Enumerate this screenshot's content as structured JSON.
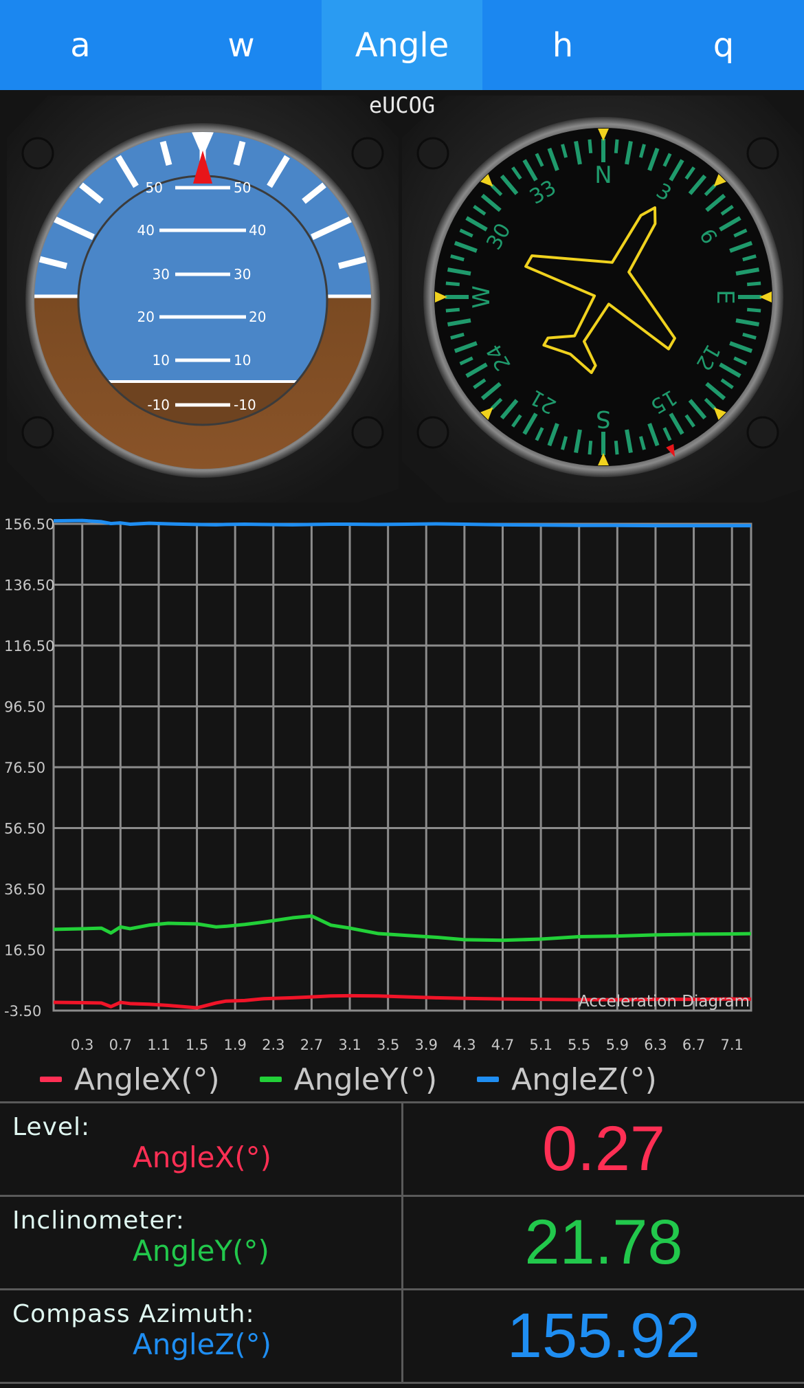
{
  "tabs": [
    {
      "label": "a",
      "active": false
    },
    {
      "label": "w",
      "active": false
    },
    {
      "label": "Angle",
      "active": true
    },
    {
      "label": "h",
      "active": false
    },
    {
      "label": "q",
      "active": false
    }
  ],
  "device_name": "eUCOG",
  "attitude": {
    "pitch_labels": [
      "50",
      "40",
      "30",
      "20",
      "10",
      "-10"
    ]
  },
  "compass": {
    "cardinals": [
      "N",
      "E",
      "S",
      "W"
    ],
    "numbers": [
      "3",
      "6",
      "12",
      "15",
      "21",
      "24",
      "30",
      "33"
    ],
    "heading": 155.92
  },
  "chart_data": {
    "type": "line",
    "title": "Acceleration Diagram",
    "ylim": [
      -3.5,
      156.5
    ],
    "yticks": [
      "156.50",
      "136.50",
      "116.50",
      "96.50",
      "76.50",
      "56.50",
      "36.50",
      "16.50",
      "-3.50"
    ],
    "xticks": [
      "0.3",
      "0.7",
      "1.1",
      "1.5",
      "1.9",
      "2.3",
      "2.7",
      "3.1",
      "3.5",
      "3.9",
      "4.3",
      "4.7",
      "5.1",
      "5.5",
      "5.9",
      "6.3",
      "6.7",
      "7.1"
    ],
    "xlim": [
      0.0,
      7.3
    ],
    "x": [
      0.0,
      0.3,
      0.5,
      0.6,
      0.7,
      0.8,
      1.0,
      1.2,
      1.5,
      1.7,
      1.8,
      2.0,
      2.2,
      2.5,
      2.7,
      2.9,
      3.1,
      3.4,
      3.7,
      4.0,
      4.3,
      4.7,
      5.1,
      5.5,
      5.9,
      6.3,
      6.7,
      7.1,
      7.3
    ],
    "series": [
      {
        "name": "AngleX(°)",
        "color": "#f01428",
        "values": [
          -0.8,
          -0.9,
          -1.0,
          -2.2,
          -0.8,
          -1.2,
          -1.4,
          -1.8,
          -2.6,
          -1.0,
          -0.4,
          -0.2,
          0.4,
          0.7,
          1.0,
          1.3,
          1.4,
          1.3,
          1.0,
          0.7,
          0.5,
          0.3,
          0.2,
          0.1,
          0.1,
          0.2,
          0.2,
          0.3,
          0.27
        ]
      },
      {
        "name": "AngleY(°)",
        "color": "#22d038",
        "values": [
          23.2,
          23.4,
          23.6,
          22.0,
          24.0,
          23.4,
          24.6,
          25.2,
          25.0,
          24.0,
          24.2,
          24.8,
          25.6,
          27.0,
          27.6,
          24.6,
          23.6,
          21.8,
          21.2,
          20.6,
          19.8,
          19.6,
          20.0,
          20.8,
          21.0,
          21.4,
          21.6,
          21.7,
          21.78
        ]
      },
      {
        "name": "AngleZ(°)",
        "color": "#1f8ef2",
        "values": [
          157.5,
          157.6,
          157.2,
          156.6,
          156.8,
          156.4,
          156.7,
          156.5,
          156.3,
          156.2,
          156.3,
          156.4,
          156.3,
          156.2,
          156.3,
          156.4,
          156.4,
          156.3,
          156.4,
          156.5,
          156.4,
          156.2,
          156.1,
          156.0,
          156.0,
          155.9,
          155.9,
          155.92,
          155.92
        ]
      }
    ]
  },
  "legend": [
    {
      "label": "AngleX(°)",
      "color": "#ff2f54"
    },
    {
      "label": "AngleY(°)",
      "color": "#22d038"
    },
    {
      "label": "AngleZ(°)",
      "color": "#1f8ef2"
    }
  ],
  "readings": [
    {
      "title": "Level:",
      "sub": "AngleX(°)",
      "value": "0.27",
      "color": "#ff2f54"
    },
    {
      "title": "Inclinometer:",
      "sub": "AngleY(°)",
      "value": "21.78",
      "color": "#22c84c"
    },
    {
      "title": "Compass Azimuth:",
      "sub": "AngleZ(°)",
      "value": "155.92",
      "color": "#1f8ef2"
    }
  ]
}
